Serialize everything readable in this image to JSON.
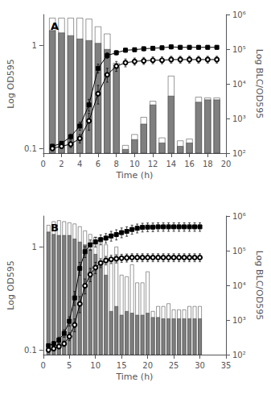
{
  "chart_data": [
    {
      "type": "bar",
      "title": "A",
      "xlabel": "Time (h)",
      "ylabel": "Log OD595",
      "y2label": "Log BLC/OD595",
      "log": "y",
      "grid": false,
      "xlim": [
        0,
        20
      ],
      "xticks": [
        0,
        2,
        4,
        6,
        8,
        10,
        12,
        14,
        16,
        18,
        20
      ],
      "ylim": [
        0.09,
        2.0
      ],
      "yticks": [
        0.1,
        1
      ],
      "y2lim": [
        100,
        1000000
      ],
      "y2ticks": [
        {
          "value": 100,
          "label": "10²"
        },
        {
          "value": 1000,
          "label": "10³"
        },
        {
          "value": 10000,
          "label": "10⁴"
        },
        {
          "value": 100000,
          "label": "10⁵"
        },
        {
          "value": 1000000,
          "label": "10⁶"
        }
      ],
      "x": [
        1,
        2,
        3,
        4,
        5,
        6,
        7,
        8,
        9,
        10,
        11,
        12,
        13,
        14,
        15,
        16,
        17,
        18,
        19
      ],
      "series": [
        {
          "type": "bar",
          "axis": "y2",
          "color": "#ffffff",
          "values": [
            800000,
            800000,
            800000,
            800000,
            750000,
            450000,
            280000,
            40000,
            170,
            350,
            1100,
            3200,
            280,
            17000,
            230,
            260,
            4200,
            4000,
            4000
          ]
        },
        {
          "type": "bar",
          "axis": "y2",
          "color": "#7f7f7f",
          "values": [
            350000,
            300000,
            250000,
            200000,
            180000,
            150000,
            100000,
            30000,
            130,
            250,
            700,
            2500,
            200,
            4500,
            160,
            200,
            3000,
            3500,
            3500
          ]
        },
        {
          "type": "line",
          "color": "#000000",
          "marker": "square",
          "values": [
            0.105,
            0.112,
            0.13,
            0.165,
            0.265,
            0.6,
            0.8,
            0.85,
            0.9,
            0.91,
            0.93,
            0.94,
            0.95,
            0.97,
            0.96,
            0.96,
            0.96,
            0.96,
            0.96
          ],
          "yerr": [
            0.004,
            0.005,
            0.008,
            0.015,
            0.035,
            0.06,
            0.05,
            0.04,
            0.04,
            0.035,
            0.04,
            0.04,
            0.04,
            0.045,
            0.04,
            0.04,
            0.04,
            0.04,
            0.04
          ]
        },
        {
          "type": "line",
          "color": "#000000",
          "marker": "circle-open",
          "values": [
            0.1,
            0.105,
            0.11,
            0.125,
            0.185,
            0.34,
            0.52,
            0.63,
            0.68,
            0.7,
            0.71,
            0.72,
            0.72,
            0.73,
            0.73,
            0.73,
            0.73,
            0.73,
            0.73
          ],
          "yerr": [
            0.004,
            0.005,
            0.008,
            0.012,
            0.035,
            0.07,
            0.08,
            0.07,
            0.06,
            0.055,
            0.055,
            0.055,
            0.055,
            0.055,
            0.055,
            0.055,
            0.055,
            0.055,
            0.055
          ]
        }
      ]
    },
    {
      "type": "bar",
      "title": "B",
      "xlabel": "Time (h)",
      "ylabel": "Log OD595",
      "y2label": "Log BLC/OD595",
      "log": "y",
      "grid": false,
      "xlim": [
        0,
        35
      ],
      "xticks": [
        0,
        5,
        10,
        15,
        20,
        25,
        30,
        35
      ],
      "ylim": [
        0.09,
        2.0
      ],
      "yticks": [
        0.1,
        1
      ],
      "y2lim": [
        100,
        1000000
      ],
      "y2ticks": [
        {
          "value": 100,
          "label": "10²"
        },
        {
          "value": 1000,
          "label": "10³"
        },
        {
          "value": 10000,
          "label": "10⁴"
        },
        {
          "value": 100000,
          "label": "10⁵"
        },
        {
          "value": 1000000,
          "label": "10⁶"
        }
      ],
      "x": [
        1,
        2,
        3,
        4,
        5,
        6,
        7,
        8,
        9,
        10,
        11,
        12,
        13,
        14,
        15,
        16,
        17,
        18,
        19,
        20,
        21,
        22,
        23,
        24,
        25,
        26,
        27,
        28,
        29,
        30
      ],
      "series": [
        {
          "type": "bar",
          "axis": "y2",
          "color": "#ffffff",
          "values": [
            550000,
            700000,
            750000,
            700000,
            650000,
            600000,
            500000,
            380000,
            300000,
            250000,
            200000,
            150000,
            60000,
            130000,
            20000,
            18000,
            40000,
            12000,
            12000,
            25000,
            1800,
            2500,
            2500,
            3000,
            2000,
            2000,
            2000,
            2500,
            2500,
            2500
          ]
        },
        {
          "type": "bar",
          "axis": "y2",
          "color": "#7f7f7f",
          "values": [
            350000,
            300000,
            280000,
            280000,
            280000,
            220000,
            180000,
            150000,
            110000,
            80000,
            45000,
            20000,
            1800,
            2500,
            1400,
            1800,
            1600,
            1400,
            1400,
            1600,
            1200,
            1200,
            1100,
            1100,
            1100,
            1100,
            1100,
            1100,
            1100,
            1100
          ]
        },
        {
          "type": "line",
          "color": "#000000",
          "marker": "square",
          "values": [
            0.11,
            0.115,
            0.125,
            0.145,
            0.19,
            0.32,
            0.62,
            0.9,
            1.05,
            1.12,
            1.18,
            1.22,
            1.28,
            1.32,
            1.38,
            1.42,
            1.48,
            1.52,
            1.55,
            1.56,
            1.56,
            1.57,
            1.57,
            1.57,
            1.57,
            1.57,
            1.57,
            1.57,
            1.57,
            1.57
          ],
          "yerr": [
            0.004,
            0.006,
            0.008,
            0.012,
            0.02,
            0.05,
            0.09,
            0.11,
            0.12,
            0.12,
            0.13,
            0.13,
            0.14,
            0.15,
            0.15,
            0.15,
            0.15,
            0.15,
            0.15,
            0.15,
            0.15,
            0.15,
            0.15,
            0.15,
            0.15,
            0.15,
            0.15,
            0.15,
            0.15,
            0.15
          ]
        },
        {
          "type": "line",
          "color": "#000000",
          "marker": "circle-open",
          "values": [
            0.1,
            0.103,
            0.108,
            0.115,
            0.135,
            0.175,
            0.28,
            0.42,
            0.54,
            0.63,
            0.7,
            0.74,
            0.76,
            0.77,
            0.78,
            0.785,
            0.79,
            0.79,
            0.79,
            0.79,
            0.79,
            0.79,
            0.79,
            0.79,
            0.79,
            0.79,
            0.79,
            0.79,
            0.79,
            0.79
          ],
          "yerr": [
            0.003,
            0.004,
            0.005,
            0.007,
            0.012,
            0.025,
            0.05,
            0.07,
            0.08,
            0.08,
            0.07,
            0.07,
            0.07,
            0.07,
            0.07,
            0.07,
            0.07,
            0.07,
            0.07,
            0.07,
            0.07,
            0.07,
            0.07,
            0.07,
            0.07,
            0.07,
            0.07,
            0.07,
            0.07,
            0.07
          ]
        }
      ]
    }
  ]
}
